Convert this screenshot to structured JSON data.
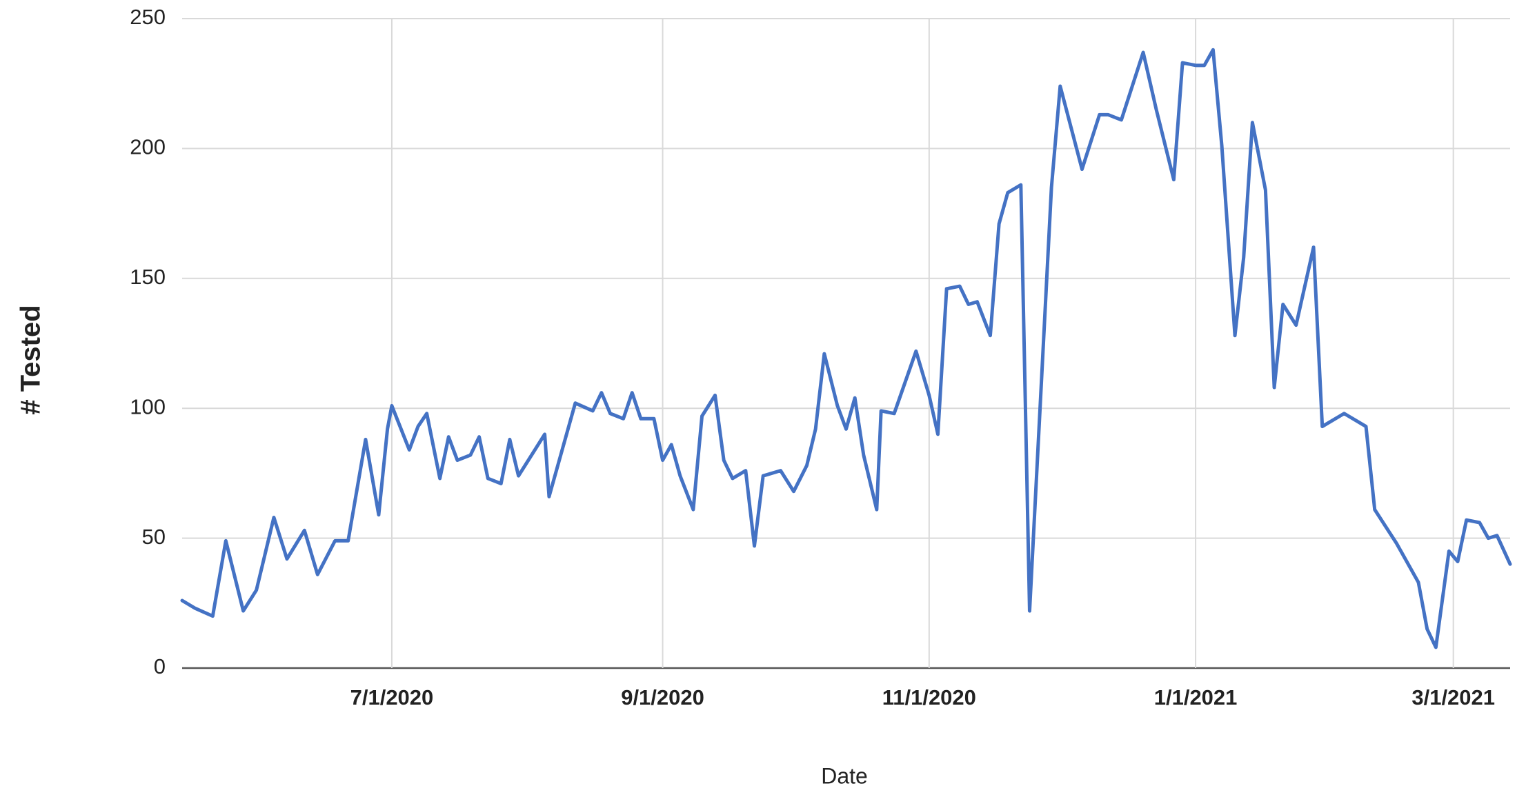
{
  "chart_data": {
    "type": "line",
    "x_label": "Date",
    "y_label": "# Tested",
    "color": "#4472c4",
    "grid": true,
    "x": [
      "2020-05-14",
      "2020-05-17",
      "2020-05-21",
      "2020-05-24",
      "2020-05-28",
      "2020-05-31",
      "2020-06-04",
      "2020-06-07",
      "2020-06-11",
      "2020-06-14",
      "2020-06-18",
      "2020-06-21",
      "2020-06-25",
      "2020-06-28",
      "2020-06-30",
      "2020-07-01",
      "2020-07-05",
      "2020-07-07",
      "2020-07-09",
      "2020-07-12",
      "2020-07-14",
      "2020-07-16",
      "2020-07-19",
      "2020-07-21",
      "2020-07-23",
      "2020-07-26",
      "2020-07-28",
      "2020-07-30",
      "2020-08-05",
      "2020-08-06",
      "2020-08-09",
      "2020-08-12",
      "2020-08-16",
      "2020-08-18",
      "2020-08-20",
      "2020-08-23",
      "2020-08-25",
      "2020-08-27",
      "2020-08-30",
      "2020-09-01",
      "2020-09-03",
      "2020-09-05",
      "2020-09-08",
      "2020-09-10",
      "2020-09-13",
      "2020-09-15",
      "2020-09-17",
      "2020-09-20",
      "2020-09-22",
      "2020-09-24",
      "2020-09-28",
      "2020-10-01",
      "2020-10-04",
      "2020-10-06",
      "2020-10-08",
      "2020-10-11",
      "2020-10-13",
      "2020-10-15",
      "2020-10-17",
      "2020-10-20",
      "2020-10-21",
      "2020-10-24",
      "2020-10-29",
      "2020-11-01",
      "2020-11-03",
      "2020-11-05",
      "2020-11-08",
      "2020-11-10",
      "2020-11-12",
      "2020-11-15",
      "2020-11-17",
      "2020-11-19",
      "2020-11-22",
      "2020-11-24",
      "2020-11-29",
      "2020-12-01",
      "2020-12-06",
      "2020-12-10",
      "2020-12-12",
      "2020-12-15",
      "2020-12-20",
      "2020-12-23",
      "2020-12-27",
      "2020-12-29",
      "2021-01-01",
      "2021-01-03",
      "2021-01-05",
      "2021-01-07",
      "2021-01-10",
      "2021-01-12",
      "2021-01-14",
      "2021-01-17",
      "2021-01-19",
      "2021-01-21",
      "2021-01-24",
      "2021-01-28",
      "2021-01-30",
      "2021-02-04",
      "2021-02-09",
      "2021-02-11",
      "2021-02-16",
      "2021-02-21",
      "2021-02-23",
      "2021-02-25",
      "2021-02-28",
      "2021-03-02",
      "2021-03-04",
      "2021-03-07",
      "2021-03-09",
      "2021-03-11",
      "2021-03-14"
    ],
    "values": [
      26,
      23,
      20,
      49,
      22,
      30,
      58,
      42,
      53,
      36,
      49,
      49,
      88,
      59,
      92,
      101,
      84,
      93,
      98,
      73,
      89,
      80,
      82,
      89,
      73,
      71,
      88,
      74,
      90,
      66,
      84,
      102,
      99,
      106,
      98,
      96,
      106,
      96,
      96,
      80,
      86,
      74,
      61,
      97,
      105,
      80,
      73,
      76,
      47,
      74,
      76,
      68,
      78,
      92,
      121,
      101,
      92,
      104,
      82,
      61,
      99,
      98,
      122,
      105,
      90,
      146,
      147,
      140,
      141,
      128,
      171,
      183,
      186,
      22,
      185,
      224,
      192,
      213,
      213,
      211,
      237,
      215,
      188,
      233,
      232,
      232,
      238,
      201,
      128,
      158,
      210,
      184,
      108,
      140,
      132,
      162,
      93,
      98,
      93,
      61,
      48,
      33,
      15,
      8,
      45,
      41,
      57,
      56,
      50,
      51,
      40
    ],
    "xlim": [
      "2020-05-14",
      "2021-03-14"
    ],
    "xticks": [
      {
        "value": "2020-07-01",
        "label": "7/1/2020"
      },
      {
        "value": "2020-09-01",
        "label": "9/1/2020"
      },
      {
        "value": "2020-11-01",
        "label": "11/1/2020"
      },
      {
        "value": "2021-01-01",
        "label": "1/1/2021"
      },
      {
        "value": "2021-03-01",
        "label": "3/1/2021"
      }
    ],
    "ylim": [
      0,
      250
    ],
    "yticks": [
      0,
      50,
      100,
      150,
      200,
      250
    ]
  }
}
